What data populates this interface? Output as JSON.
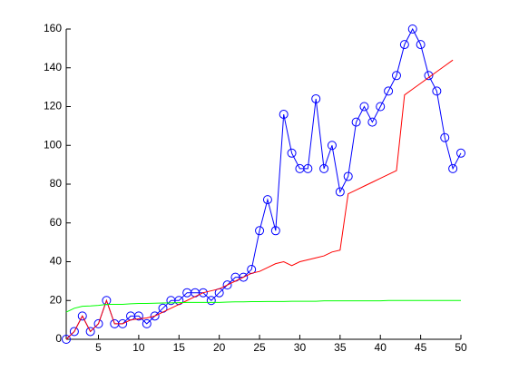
{
  "chart_data": {
    "type": "line",
    "x": [
      1,
      2,
      3,
      4,
      5,
      6,
      7,
      8,
      9,
      10,
      11,
      12,
      13,
      14,
      15,
      16,
      17,
      18,
      19,
      20,
      21,
      22,
      23,
      24,
      25,
      26,
      27,
      28,
      29,
      30,
      31,
      32,
      33,
      34,
      35,
      36,
      37,
      38,
      39,
      40,
      41,
      42,
      43,
      44,
      45,
      46,
      47,
      48,
      49,
      50
    ],
    "series": [
      {
        "color": "#0000ff",
        "marker": "o",
        "values": [
          0,
          4,
          12,
          4,
          8,
          20,
          8,
          8,
          12,
          12,
          8,
          12,
          16,
          20,
          20,
          24,
          24,
          24,
          20,
          24,
          28,
          32,
          32,
          36,
          56,
          72,
          56,
          116,
          96,
          88,
          88,
          124,
          88,
          100,
          76,
          84,
          112,
          120,
          112,
          120,
          128,
          136,
          152,
          160,
          152,
          136,
          128,
          104,
          88,
          96
        ]
      },
      {
        "color": "#ff0000",
        "values": [
          0,
          4,
          12,
          4,
          8,
          20,
          8,
          8,
          10,
          10.5,
          11,
          12,
          14,
          16,
          18,
          20,
          22,
          24,
          25,
          26,
          28,
          30,
          32,
          34,
          35,
          37,
          39,
          40,
          38,
          40,
          41,
          42,
          43,
          45,
          46,
          75,
          77,
          79,
          81,
          83,
          85,
          87,
          126,
          129,
          132,
          135,
          138,
          141,
          144,
          null
        ]
      },
      {
        "color": "#00ff00",
        "values": [
          14,
          16,
          17,
          17.2,
          17.5,
          18,
          18,
          18,
          18.3,
          18.5,
          18.5,
          18.6,
          18.7,
          18.8,
          18.9,
          19,
          19,
          19,
          19,
          19,
          19.2,
          19.3,
          19.3,
          19.4,
          19.4,
          19.5,
          19.5,
          19.5,
          19.6,
          19.6,
          19.6,
          19.6,
          19.8,
          19.8,
          19.8,
          19.8,
          19.8,
          19.8,
          19.8,
          19.8,
          20,
          20,
          20,
          20,
          20,
          20,
          20,
          20,
          20,
          20
        ]
      }
    ],
    "xlim": [
      1,
      50
    ],
    "xticks": [
      5,
      10,
      15,
      20,
      25,
      30,
      35,
      40,
      45,
      50
    ],
    "ylim": [
      0,
      160
    ],
    "yticks": [
      0,
      20,
      40,
      60,
      80,
      100,
      120,
      140,
      160
    ],
    "grid": false
  }
}
